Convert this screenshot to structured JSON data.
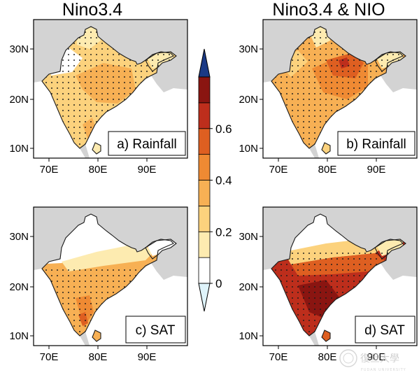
{
  "titles": {
    "left": "Nino3.4",
    "right": "Nino3.4 & NIO"
  },
  "axes": {
    "lat_ticks": [
      "30N",
      "20N",
      "10N"
    ],
    "lon_ticks": [
      "70E",
      "80E",
      "90E"
    ]
  },
  "panels": [
    {
      "label": "a) Rainfall",
      "predictor": "Nino3.4",
      "variable": "Rainfall"
    },
    {
      "label": "b) Rainfall",
      "predictor": "Nino3.4 & NIO",
      "variable": "Rainfall"
    },
    {
      "label": "c) SAT",
      "predictor": "Nino3.4",
      "variable": "SAT"
    },
    {
      "label": "d) SAT",
      "predictor": "Nino3.4 & NIO",
      "variable": "SAT"
    }
  ],
  "colorbar": {
    "labels": [
      "0.6",
      "0.4",
      "0.2",
      "0"
    ],
    "levels": [
      0,
      0.1,
      0.2,
      0.3,
      0.4,
      0.5,
      0.6,
      0.7
    ],
    "colors": [
      "#ffffff",
      "#fdebb0",
      "#fcd27d",
      "#f7b054",
      "#ef8a33",
      "#de5f21",
      "#bd2e1c",
      "#8a1511"
    ],
    "extend_low_color": "#dff4fb",
    "extend_high_color": "#1b3a86"
  },
  "map_colors": {
    "ocean": "#ffffff",
    "land_outside": "#d3d3d3"
  },
  "watermark": {
    "text": "復旦大學",
    "subtext": "FUDAN UNIVERSITY"
  }
}
